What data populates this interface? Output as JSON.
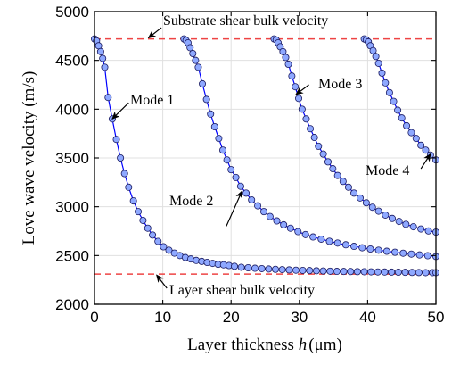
{
  "chart_data": {
    "type": "line",
    "xlabel_text": "Layer thickness ",
    "xlabel_var": "h",
    "xlabel_unit": "(μm)",
    "ylabel": "Love wave velocity (m/s)",
    "xlim": [
      0,
      50
    ],
    "ylim": [
      2000,
      5000
    ],
    "xticks": [
      0,
      10,
      20,
      30,
      40,
      50
    ],
    "yticks": [
      2000,
      2500,
      3000,
      3500,
      4000,
      4500,
      5000
    ],
    "xtick_labels": [
      "0",
      "10",
      "20",
      "30",
      "40",
      "50"
    ],
    "ytick_labels": [
      "2000",
      "2500",
      "3000",
      "3500",
      "4000",
      "4500",
      "5000"
    ],
    "grid": true,
    "colors": {
      "series_line": "#0000ff",
      "marker_fill": "#8ea8ff",
      "marker_edge": "#1a1a60",
      "reference_line": "#ee4444",
      "grid": "#e0e0e0"
    },
    "reference_lines": [
      {
        "label": "Substrate shear bulk velocity",
        "y": 4720
      },
      {
        "label": "Layer shear bulk velocity",
        "y": 2310
      }
    ],
    "series": [
      {
        "name": "Mode 1",
        "x": [
          0.0,
          0.3,
          0.6,
          0.9,
          1.2,
          1.5,
          2.0,
          2.6,
          3.2,
          3.8,
          4.4,
          5.0,
          5.7,
          6.4,
          7.1,
          7.8,
          8.5,
          9.3,
          10.1,
          10.9,
          11.7,
          12.5,
          13.3,
          14.1,
          14.9,
          15.7,
          16.5,
          17.3,
          18.1,
          18.9,
          19.7,
          20.5,
          21.5,
          22.5,
          23.5,
          24.5,
          25.5,
          26.5,
          27.5,
          28.5,
          29.5,
          30.5,
          31.5,
          32.5,
          33.5,
          34.5,
          35.5,
          36.5,
          37.5,
          38.5,
          39.5,
          40.5,
          41.5,
          42.5,
          43.5,
          44.5,
          45.5,
          46.5,
          47.5,
          48.5,
          49.5,
          50.0
        ],
        "y": [
          4720,
          4700,
          4650,
          4590,
          4520,
          4430,
          4120,
          3900,
          3690,
          3500,
          3340,
          3200,
          3060,
          2950,
          2860,
          2780,
          2710,
          2645,
          2590,
          2555,
          2525,
          2500,
          2480,
          2465,
          2450,
          2440,
          2430,
          2420,
          2410,
          2405,
          2398,
          2390,
          2380,
          2375,
          2370,
          2366,
          2362,
          2359,
          2356,
          2353,
          2350,
          2348,
          2346,
          2344,
          2342,
          2340,
          2338,
          2337,
          2336,
          2335,
          2334,
          2333,
          2332,
          2331,
          2330,
          2329,
          2328,
          2327,
          2326,
          2325,
          2325,
          2325
        ]
      },
      {
        "name": "Mode 2",
        "x": [
          13.1,
          13.4,
          13.7,
          14.0,
          14.4,
          14.8,
          15.2,
          15.8,
          16.4,
          17.0,
          17.6,
          18.2,
          18.8,
          19.4,
          20.0,
          20.7,
          21.4,
          22.2,
          23.0,
          23.9,
          24.8,
          25.7,
          26.7,
          27.7,
          28.7,
          29.8,
          30.9,
          32.0,
          33.2,
          34.4,
          35.6,
          36.8,
          38.0,
          39.2,
          40.4,
          41.6,
          42.8,
          44.0,
          45.2,
          46.4,
          47.6,
          48.8,
          50.0
        ],
        "y": [
          4720,
          4705,
          4680,
          4630,
          4570,
          4500,
          4430,
          4260,
          4100,
          3950,
          3820,
          3700,
          3580,
          3480,
          3380,
          3300,
          3210,
          3140,
          3070,
          3010,
          2950,
          2900,
          2855,
          2815,
          2780,
          2745,
          2715,
          2690,
          2668,
          2646,
          2628,
          2610,
          2594,
          2580,
          2567,
          2555,
          2544,
          2534,
          2524,
          2515,
          2506,
          2498,
          2490
        ]
      },
      {
        "name": "Mode 3",
        "x": [
          26.3,
          26.6,
          26.9,
          27.2,
          27.6,
          28.0,
          28.4,
          28.9,
          29.4,
          29.9,
          30.4,
          31.0,
          31.6,
          32.2,
          32.8,
          33.5,
          34.2,
          34.9,
          35.6,
          36.4,
          37.2,
          38.0,
          38.9,
          39.8,
          40.7,
          41.6,
          42.6,
          43.6,
          44.6,
          45.6,
          46.7,
          47.8,
          48.9,
          50.0
        ],
        "y": [
          4720,
          4710,
          4680,
          4640,
          4590,
          4530,
          4460,
          4340,
          4230,
          4110,
          4000,
          3900,
          3800,
          3710,
          3620,
          3540,
          3460,
          3390,
          3320,
          3260,
          3200,
          3140,
          3090,
          3040,
          2995,
          2955,
          2915,
          2880,
          2850,
          2820,
          2795,
          2772,
          2752,
          2740
        ]
      },
      {
        "name": "Mode 4",
        "x": [
          39.5,
          39.8,
          40.1,
          40.4,
          40.8,
          41.2,
          41.6,
          42.1,
          42.6,
          43.2,
          43.8,
          44.4,
          45.0,
          45.7,
          46.4,
          47.1,
          47.8,
          48.5,
          49.2,
          50.0
        ],
        "y": [
          4720,
          4710,
          4690,
          4650,
          4600,
          4540,
          4470,
          4370,
          4270,
          4170,
          4080,
          3990,
          3910,
          3830,
          3760,
          3700,
          3630,
          3580,
          3530,
          3480
        ]
      }
    ],
    "annotations": [
      {
        "text": "Substrate shear bulk velocity"
      },
      {
        "text": "Layer shear bulk velocity"
      },
      {
        "text": "Mode 1"
      },
      {
        "text": "Mode 2"
      },
      {
        "text": "Mode 3"
      },
      {
        "text": "Mode 4"
      }
    ]
  }
}
